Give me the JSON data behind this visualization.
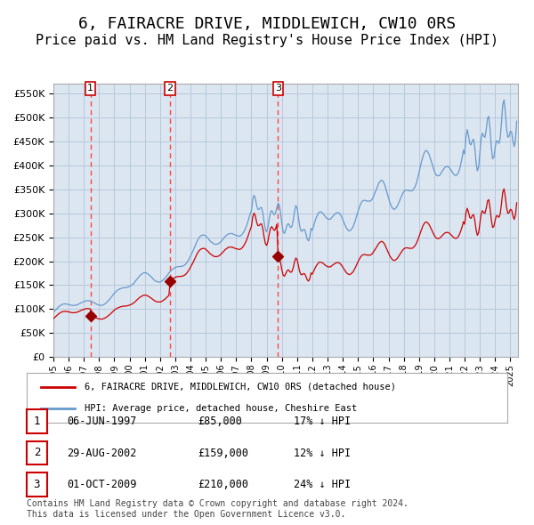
{
  "title": "6, FAIRACRE DRIVE, MIDDLEWICH, CW10 0RS",
  "subtitle": "Price paid vs. HM Land Registry's House Price Index (HPI)",
  "title_fontsize": 13,
  "subtitle_fontsize": 11,
  "background_color": "#dce6f1",
  "plot_bg_color": "#dce6f1",
  "fig_bg_color": "#ffffff",
  "legend_label_red": "6, FAIRACRE DRIVE, MIDDLEWICH, CW10 0RS (detached house)",
  "legend_label_blue": "HPI: Average price, detached house, Cheshire East",
  "footer": "Contains HM Land Registry data © Crown copyright and database right 2024.\nThis data is licensed under the Open Government Licence v3.0.",
  "transactions": [
    {
      "num": 1,
      "date": "06-JUN-1997",
      "price": 85000,
      "pct": "17% ↓ HPI",
      "x_year": 1997.43
    },
    {
      "num": 2,
      "date": "29-AUG-2002",
      "price": 159000,
      "pct": "12% ↓ HPI",
      "x_year": 2002.66
    },
    {
      "num": 3,
      "date": "01-OCT-2009",
      "price": 210000,
      "pct": "24% ↓ HPI",
      "x_year": 2009.75
    }
  ],
  "ylim": [
    0,
    570000
  ],
  "xlim_start": 1995,
  "xlim_end": 2025.5,
  "red_color": "#cc0000",
  "blue_color": "#6699cc",
  "dashed_color": "#ff4444",
  "grid_color": "#b0c4d8",
  "marker_color": "#990000"
}
